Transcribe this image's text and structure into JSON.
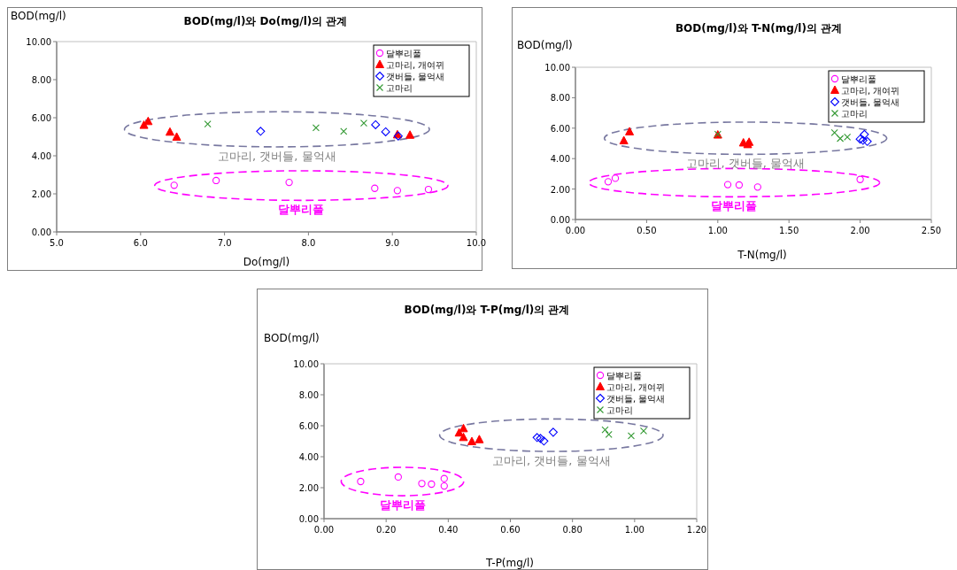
{
  "chart_data": [
    {
      "type": "scatter",
      "title": "BOD(mg/l)와 Do(mg/l)의 관계",
      "xlabel": "Do(mg/l)",
      "ylabel": "BOD(mg/l)",
      "xlim": [
        5,
        10
      ],
      "ylim": [
        0,
        10
      ],
      "xticks": [
        {
          "value": 5,
          "label": "5.0"
        },
        {
          "value": 6,
          "label": "6.0"
        },
        {
          "value": 7,
          "label": "7.0"
        },
        {
          "value": 8,
          "label": "8.0"
        },
        {
          "value": 9,
          "label": "9.0"
        },
        {
          "value": 10,
          "label": "10.0"
        }
      ],
      "yticks": [
        {
          "value": 0,
          "label": "0.00"
        },
        {
          "value": 2,
          "label": "2.00"
        },
        {
          "value": 4,
          "label": "4.00"
        },
        {
          "value": 6,
          "label": "6.00"
        },
        {
          "value": 8,
          "label": "8.00"
        },
        {
          "value": 10,
          "label": "10.00"
        }
      ],
      "legend": "top right",
      "grid": false,
      "series": [
        {
          "name": "달뿌리풀",
          "color": "#ff00ff",
          "marker": "circle",
          "x": [
            6.4,
            6.9,
            7.77,
            8.79,
            9.06,
            9.43
          ],
          "values": [
            2.45,
            2.7,
            2.6,
            2.29,
            2.17,
            2.23
          ]
        },
        {
          "name": "고마리, 개여뀌",
          "color": "#ff0000",
          "marker": "triangle",
          "x": [
            6.04,
            6.09,
            6.35,
            6.43,
            9.06,
            9.21
          ],
          "values": [
            5.6,
            5.8,
            5.24,
            4.98,
            5.1,
            5.08
          ]
        },
        {
          "name": "갯버들, 물억새",
          "color": "#0000ff",
          "marker": "diamond",
          "x": [
            7.43,
            8.8,
            8.92,
            9.07
          ],
          "values": [
            5.29,
            5.63,
            5.26,
            5.04
          ]
        },
        {
          "name": "고마리",
          "color": "#339933",
          "marker": "cross",
          "x": [
            6.8,
            8.09,
            8.42,
            8.66
          ],
          "values": [
            5.67,
            5.47,
            5.29,
            5.72
          ]
        }
      ],
      "annotations": [
        "고마리, 갯버들, 물억새",
        "달뿌리풀"
      ]
    },
    {
      "type": "scatter",
      "title": "BOD(mg/l)와 T-N(mg/l)의 관계",
      "xlabel": "T-N(mg/l)",
      "ylabel": "BOD(mg/l)",
      "xlim": [
        0,
        2.5
      ],
      "ylim": [
        0,
        10
      ],
      "xticks": [
        {
          "value": 0,
          "label": "0.00"
        },
        {
          "value": 0.5,
          "label": "0.50"
        },
        {
          "value": 1,
          "label": "1.00"
        },
        {
          "value": 1.5,
          "label": "1.50"
        },
        {
          "value": 2,
          "label": "2.00"
        },
        {
          "value": 2.5,
          "label": "2.50"
        }
      ],
      "yticks": [
        {
          "value": 0,
          "label": "0.00"
        },
        {
          "value": 2,
          "label": "2.00"
        },
        {
          "value": 4,
          "label": "4.00"
        },
        {
          "value": 6,
          "label": "6.00"
        },
        {
          "value": 8,
          "label": "8.00"
        },
        {
          "value": 10,
          "label": "10.00"
        }
      ],
      "legend": "top right",
      "grid": false,
      "series": [
        {
          "name": "달뿌리풀",
          "color": "#ff00ff",
          "marker": "circle",
          "x": [
            0.23,
            0.28,
            1.07,
            1.15,
            1.28,
            2.0
          ],
          "values": [
            2.48,
            2.71,
            2.29,
            2.27,
            2.13,
            2.63
          ]
        },
        {
          "name": "고마리, 개여뀌",
          "color": "#ff0000",
          "marker": "triangle",
          "x": [
            0.34,
            0.38,
            1.0,
            1.18,
            1.21,
            1.22
          ],
          "values": [
            5.17,
            5.76,
            5.55,
            5.03,
            4.92,
            5.07
          ]
        },
        {
          "name": "갯버들, 물억새",
          "color": "#0000ff",
          "marker": "diamond",
          "x": [
            2.0,
            2.03,
            2.02,
            2.05
          ],
          "values": [
            5.28,
            5.59,
            5.2,
            5.13
          ]
        },
        {
          "name": "고마리",
          "color": "#339933",
          "marker": "cross",
          "x": [
            1.0,
            1.82,
            1.86,
            1.91
          ],
          "values": [
            5.6,
            5.71,
            5.32,
            5.42
          ]
        }
      ],
      "annotations": [
        "고마리, 갯버들, 물억새",
        "달뿌리풀"
      ]
    },
    {
      "type": "scatter",
      "title": "BOD(mg/l)와 T-P(mg/l)의  관계",
      "xlabel": "T-P(mg/l)",
      "ylabel": "BOD(mg/l)",
      "xlim": [
        0,
        1.2
      ],
      "ylim": [
        0,
        10
      ],
      "xticks": [
        {
          "value": 0,
          "label": "0.00"
        },
        {
          "value": 0.2,
          "label": "0.20"
        },
        {
          "value": 0.4,
          "label": "0.40"
        },
        {
          "value": 0.6,
          "label": "0.60"
        },
        {
          "value": 0.8,
          "label": "0.80"
        },
        {
          "value": 1,
          "label": "1.00"
        },
        {
          "value": 1.2,
          "label": "1.20"
        }
      ],
      "yticks": [
        {
          "value": 0,
          "label": "0.00"
        },
        {
          "value": 2,
          "label": "2.00"
        },
        {
          "value": 4,
          "label": "4.00"
        },
        {
          "value": 6,
          "label": "6.00"
        },
        {
          "value": 8,
          "label": "8.00"
        },
        {
          "value": 10,
          "label": "10.00"
        }
      ],
      "legend": "top right",
      "grid": false,
      "series": [
        {
          "name": "달뿌리풀",
          "color": "#ff00ff",
          "marker": "circle",
          "x": [
            0.118,
            0.239,
            0.315,
            0.346,
            0.387,
            0.387
          ],
          "values": [
            2.4,
            2.69,
            2.27,
            2.23,
            2.59,
            2.11
          ]
        },
        {
          "name": "고마리, 개여뀌",
          "color": "#ff0000",
          "marker": "triangle",
          "x": [
            0.435,
            0.449,
            0.449,
            0.476,
            0.5
          ],
          "values": [
            5.53,
            5.81,
            5.24,
            4.97,
            5.1
          ]
        },
        {
          "name": "갯버들, 물억새",
          "color": "#0000ff",
          "marker": "diamond",
          "x": [
            0.686,
            0.697,
            0.708,
            0.738
          ],
          "values": [
            5.24,
            5.18,
            5.01,
            5.58
          ]
        },
        {
          "name": "고마리",
          "color": "#339933",
          "marker": "cross",
          "x": [
            0.905,
            0.917,
            0.989,
            1.029
          ],
          "values": [
            5.73,
            5.43,
            5.35,
            5.66
          ]
        }
      ],
      "annotations": [
        "고마리, 갯버들, 물억새",
        "달뿌리풀"
      ]
    }
  ]
}
